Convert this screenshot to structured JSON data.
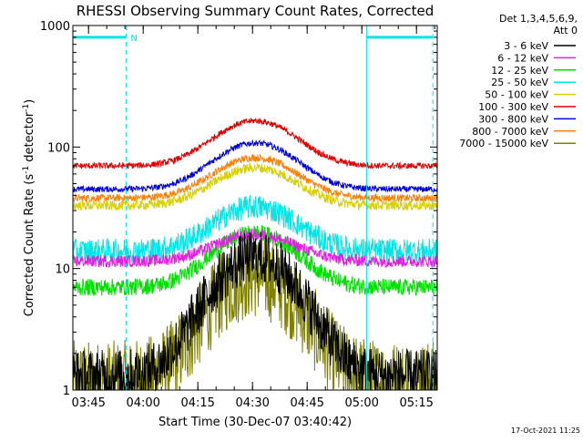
{
  "chart_data": {
    "type": "line",
    "title": "RHESSI Observing Summary Count Rates, Corrected",
    "xlabel": "Start Time (30-Dec-07 03:40:42)",
    "ylabel": {
      "prefix": "Corrected Count Rate (s",
      "sup1": "-1",
      "mid": " detector",
      "sup2": "-1",
      "suffix": ")"
    },
    "y_scale": "log",
    "ylim": [
      1,
      1000
    ],
    "xlim_minutes": [
      0,
      100
    ],
    "y_ticks": [
      {
        "value": 1,
        "label": "1"
      },
      {
        "value": 10,
        "label": "10"
      },
      {
        "value": 100,
        "label": "100"
      },
      {
        "value": 1000,
        "label": "1000"
      }
    ],
    "x_ticks": [
      {
        "minute": 4.3,
        "label": "03:45"
      },
      {
        "minute": 19.3,
        "label": "04:00"
      },
      {
        "minute": 34.3,
        "label": "04:15"
      },
      {
        "minute": 49.3,
        "label": "04:30"
      },
      {
        "minute": 64.3,
        "label": "04:45"
      },
      {
        "minute": 79.3,
        "label": "05:00"
      },
      {
        "minute": 94.3,
        "label": "05:15"
      }
    ],
    "legend_header": [
      "Det 1,3,4,5,6,9,",
      "Att 0"
    ],
    "legend_placement": "right",
    "series": [
      {
        "name": "3 - 6 keV",
        "color": "#000000",
        "base": 1.3,
        "peak_mult": 9.5,
        "noise": 0.22
      },
      {
        "name": "6 - 12 keV",
        "color": "#e020e0",
        "base": 11.5,
        "peak_mult": 1.65,
        "noise": 0.05
      },
      {
        "name": "12 - 25 keV",
        "color": "#00e000",
        "base": 7.0,
        "peak_mult": 2.8,
        "noise": 0.07
      },
      {
        "name": "25 - 50 keV",
        "color": "#00e6e6",
        "base": 14.0,
        "peak_mult": 2.3,
        "noise": 0.1
      },
      {
        "name": "50 - 100 keV",
        "color": "#d8d000",
        "base": 33.0,
        "peak_mult": 2.05,
        "noise": 0.04
      },
      {
        "name": "100 - 300 keV",
        "color": "#e00000",
        "base": 70.0,
        "peak_mult": 2.35,
        "noise": 0.025
      },
      {
        "name": "300 - 800 keV",
        "color": "#0000e0",
        "base": 45.0,
        "peak_mult": 2.4,
        "noise": 0.025
      },
      {
        "name": "800 - 7000 keV",
        "color": "#ff8000",
        "base": 38.0,
        "peak_mult": 2.15,
        "noise": 0.03
      },
      {
        "name": "7000 - 15000 keV",
        "color": "#808000",
        "base": 1.15,
        "peak_mult": 7.5,
        "noise": 0.35
      }
    ],
    "peak_minute": 50,
    "peak_width_minutes": 10,
    "markers": {
      "label": "N",
      "color": "#00e6e6",
      "bar_y": 800,
      "bars_minutes": [
        [
          0,
          14.5
        ],
        [
          80.6,
          98.8
        ]
      ],
      "dashed_lines_minutes": [
        14.6,
        98.8
      ],
      "solid_lines_minutes": [
        0,
        80.6
      ]
    },
    "grid": false
  },
  "footer": {
    "timestamp": "17-Oct-2021 11:25"
  }
}
